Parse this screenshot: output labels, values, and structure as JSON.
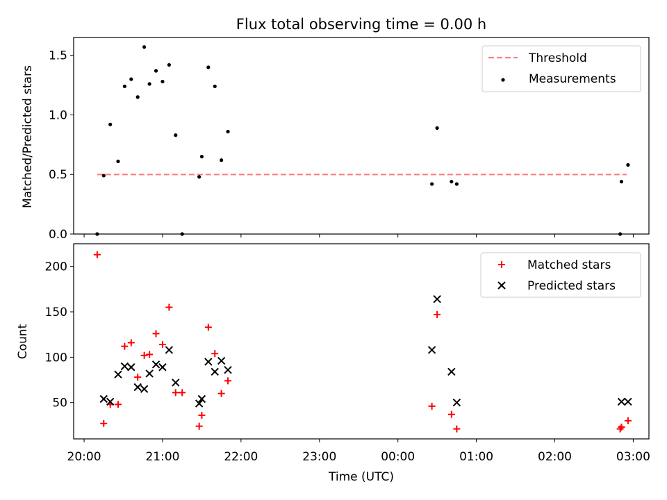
{
  "chart_data": [
    {
      "type": "scatter",
      "title": "Flux total observing time = 0.00 h",
      "xlabel": "",
      "ylabel": "Matched/Predicted stars",
      "ylim": [
        0,
        1.65
      ],
      "xlim": [
        "19:52",
        "03:12"
      ],
      "y_ticks": [
        "0.0",
        "0.5",
        "1.0",
        "1.5"
      ],
      "legend": {
        "position": "top-right"
      },
      "series": [
        {
          "name": "Threshold",
          "kind": "line",
          "style": "dashed",
          "color": "#ff7f7f",
          "points": [
            [
              "20:10",
              0.5
            ],
            [
              "02:55",
              0.5
            ]
          ]
        },
        {
          "name": "Measurements",
          "kind": "scatter",
          "marker": "dot",
          "color": "#000000",
          "points": [
            [
              "20:10",
              0.0
            ],
            [
              "20:15",
              0.49
            ],
            [
              "20:20",
              0.92
            ],
            [
              "20:26",
              0.61
            ],
            [
              "20:31",
              1.24
            ],
            [
              "20:36",
              1.3
            ],
            [
              "20:41",
              1.15
            ],
            [
              "20:46",
              1.57
            ],
            [
              "20:50",
              1.26
            ],
            [
              "20:55",
              1.37
            ],
            [
              "21:00",
              1.28
            ],
            [
              "21:05",
              1.42
            ],
            [
              "21:10",
              0.83
            ],
            [
              "21:15",
              0.0
            ],
            [
              "21:28",
              0.48
            ],
            [
              "21:30",
              0.65
            ],
            [
              "21:35",
              1.4
            ],
            [
              "21:40",
              1.24
            ],
            [
              "21:45",
              0.62
            ],
            [
              "21:50",
              0.86
            ],
            [
              "00:26",
              0.42
            ],
            [
              "00:30",
              0.89
            ],
            [
              "00:41",
              0.44
            ],
            [
              "00:45",
              0.42
            ],
            [
              "02:50",
              0.0
            ],
            [
              "02:51",
              0.44
            ],
            [
              "02:56",
              0.58
            ]
          ]
        }
      ]
    },
    {
      "type": "scatter",
      "title": "",
      "xlabel": "Time (UTC)",
      "ylabel": "Count",
      "ylim": [
        10,
        225
      ],
      "xlim": [
        "19:52",
        "03:12"
      ],
      "x_ticks": [
        "20:00",
        "21:00",
        "22:00",
        "23:00",
        "00:00",
        "01:00",
        "02:00",
        "03:00"
      ],
      "y_ticks": [
        "50",
        "100",
        "150",
        "200"
      ],
      "legend": {
        "position": "top-right"
      },
      "series": [
        {
          "name": "Matched stars",
          "kind": "scatter",
          "marker": "plus",
          "color": "#ff0000",
          "points": [
            [
              "20:10",
              213
            ],
            [
              "20:15",
              27
            ],
            [
              "20:20",
              48
            ],
            [
              "20:26",
              48
            ],
            [
              "20:31",
              112
            ],
            [
              "20:36",
              116
            ],
            [
              "20:41",
              78
            ],
            [
              "20:46",
              102
            ],
            [
              "20:50",
              103
            ],
            [
              "20:55",
              126
            ],
            [
              "21:00",
              114
            ],
            [
              "21:05",
              155
            ],
            [
              "21:10",
              61
            ],
            [
              "21:15",
              61
            ],
            [
              "21:28",
              24
            ],
            [
              "21:30",
              36
            ],
            [
              "21:35",
              133
            ],
            [
              "21:40",
              104
            ],
            [
              "21:45",
              60
            ],
            [
              "21:50",
              74
            ],
            [
              "00:26",
              46
            ],
            [
              "00:30",
              147
            ],
            [
              "00:41",
              37
            ],
            [
              "00:45",
              21
            ],
            [
              "02:50",
              21
            ],
            [
              "02:51",
              23
            ],
            [
              "02:56",
              30
            ]
          ]
        },
        {
          "name": "Predicted stars",
          "kind": "scatter",
          "marker": "x",
          "color": "#000000",
          "points": [
            [
              "20:15",
              54
            ],
            [
              "20:20",
              51
            ],
            [
              "20:26",
              81
            ],
            [
              "20:31",
              90
            ],
            [
              "20:36",
              89
            ],
            [
              "20:41",
              67
            ],
            [
              "20:46",
              65
            ],
            [
              "20:50",
              82
            ],
            [
              "20:55",
              92
            ],
            [
              "21:00",
              89
            ],
            [
              "21:05",
              108
            ],
            [
              "21:10",
              72
            ],
            [
              "21:28",
              49
            ],
            [
              "21:30",
              54
            ],
            [
              "21:35",
              95
            ],
            [
              "21:40",
              84
            ],
            [
              "21:45",
              96
            ],
            [
              "21:50",
              86
            ],
            [
              "00:26",
              108
            ],
            [
              "00:30",
              164
            ],
            [
              "00:41",
              84
            ],
            [
              "00:45",
              50
            ],
            [
              "02:51",
              51
            ],
            [
              "02:56",
              51
            ]
          ]
        }
      ]
    }
  ]
}
